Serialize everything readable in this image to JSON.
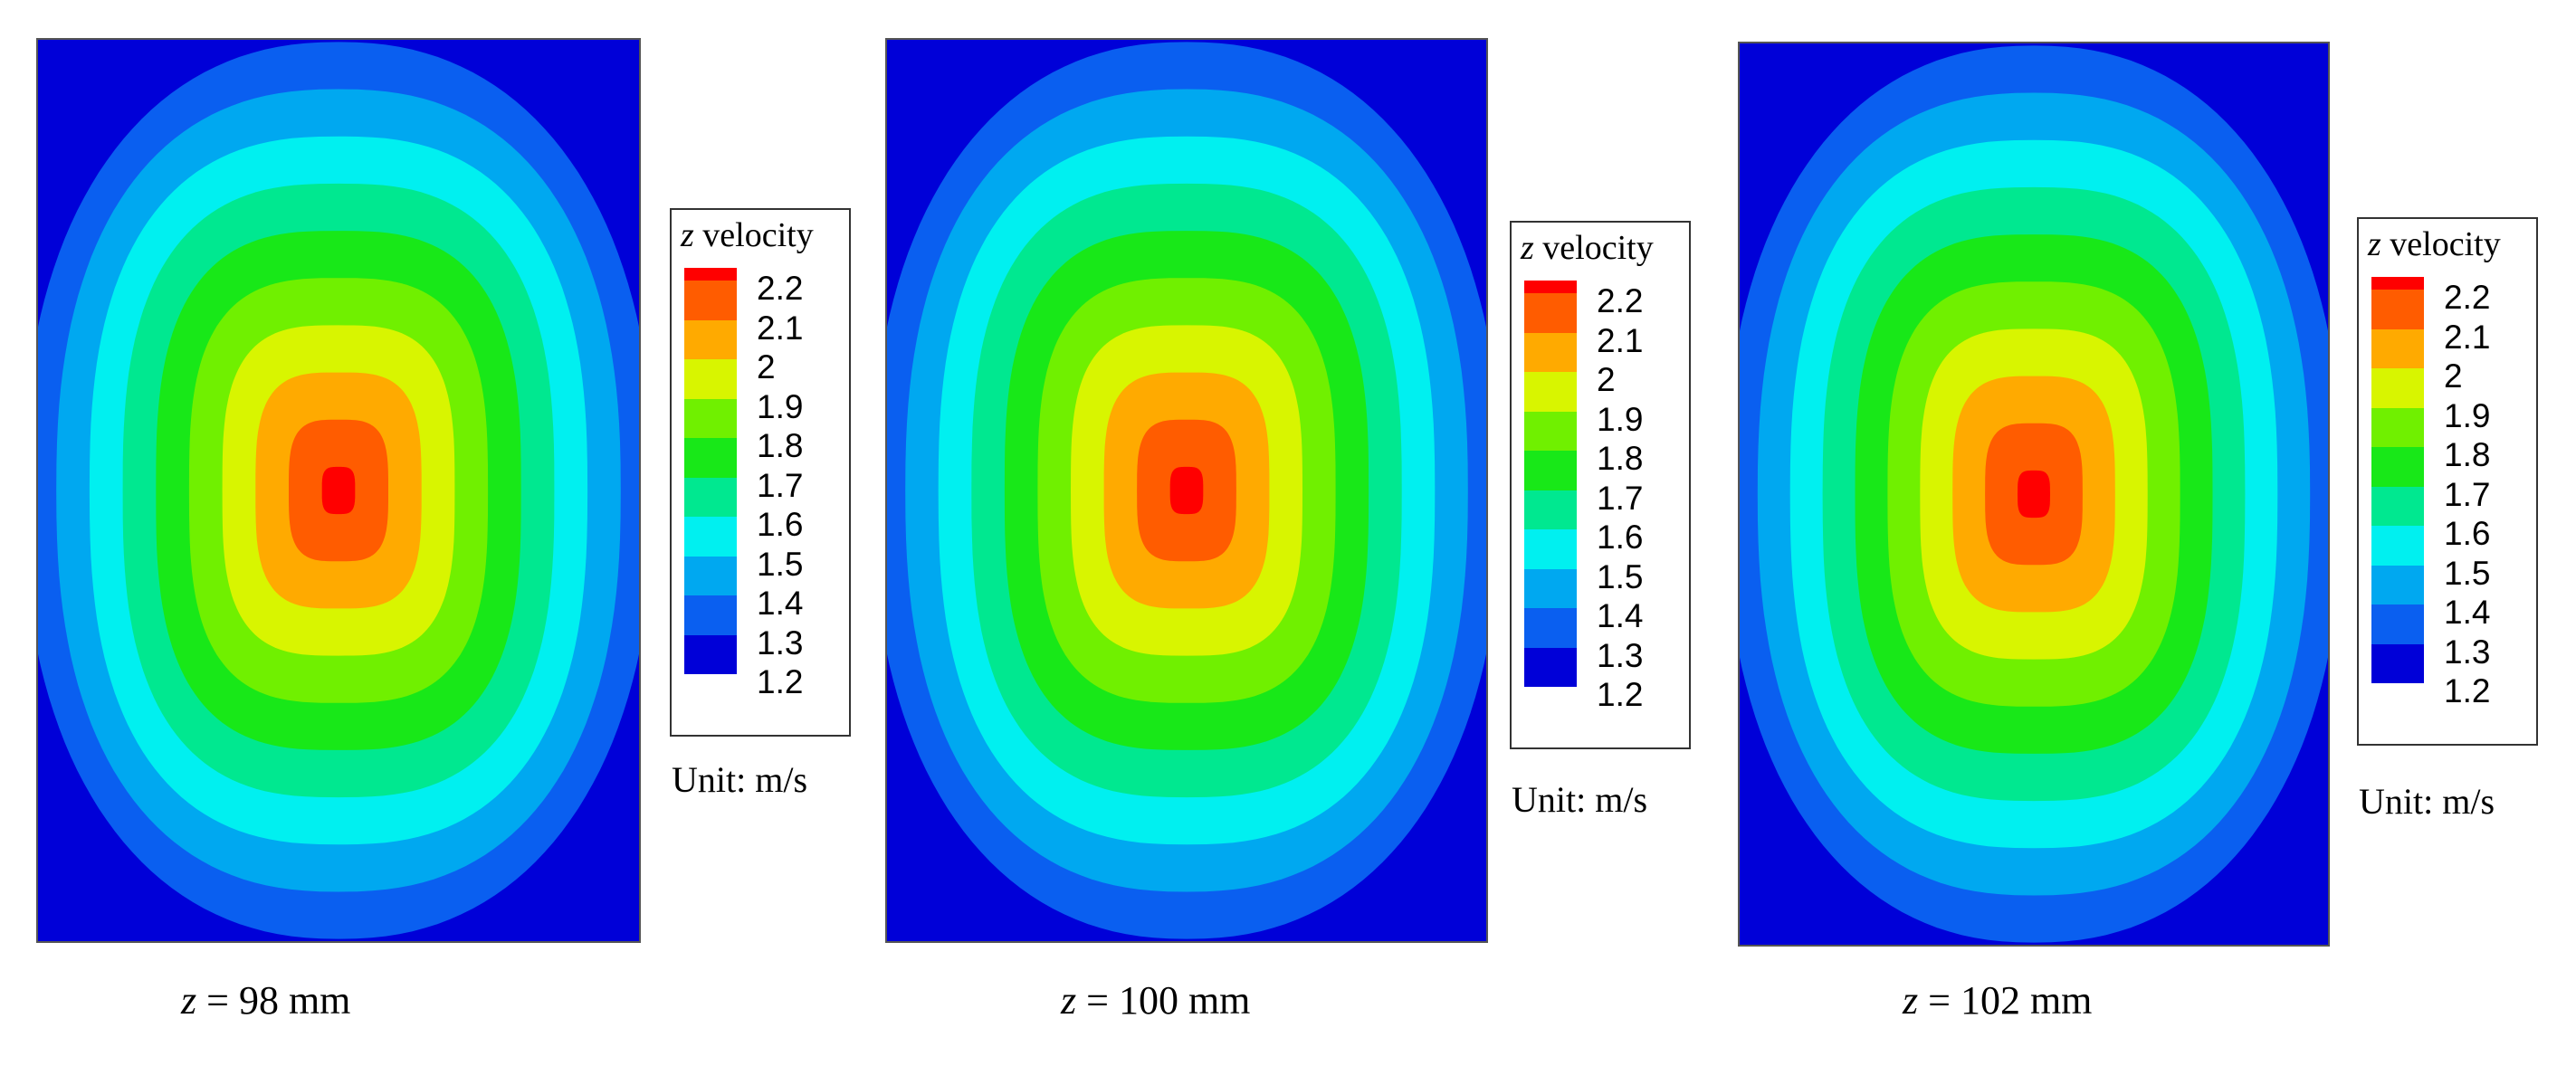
{
  "chart_data": {
    "type": "heatmap",
    "title": "",
    "quantity": "z velocity",
    "unit_label": "Unit: m/s",
    "levels": [
      1.2,
      1.3,
      1.4,
      1.5,
      1.6,
      1.7,
      1.8,
      1.9,
      2.0,
      2.1,
      2.2
    ],
    "tick_labels": [
      "2.2",
      "2.1",
      "2",
      "1.9",
      "1.8",
      "1.7",
      "1.6",
      "1.5",
      "1.4",
      "1.3",
      "1.2"
    ],
    "colormap": [
      "#0000d8",
      "#0a5ff0",
      "#00a8f0",
      "#00f0f0",
      "#00e890",
      "#18e818",
      "#70f000",
      "#d8f500",
      "#ffaa00",
      "#ff5c00",
      "#ff0000"
    ],
    "panels": [
      {
        "caption_var": "z",
        "caption_text": " = 98 mm",
        "z_mm": 98,
        "min_value": 1.2,
        "max_value": 2.25
      },
      {
        "caption_var": "z",
        "caption_text": " = 100 mm",
        "z_mm": 100,
        "min_value": 1.2,
        "max_value": 2.25
      },
      {
        "caption_var": "z",
        "caption_text": " = 102 mm",
        "z_mm": 102,
        "min_value": 1.2,
        "max_value": 2.25
      }
    ]
  },
  "legend": {
    "title_var": "z",
    "title_text": " velocity"
  }
}
